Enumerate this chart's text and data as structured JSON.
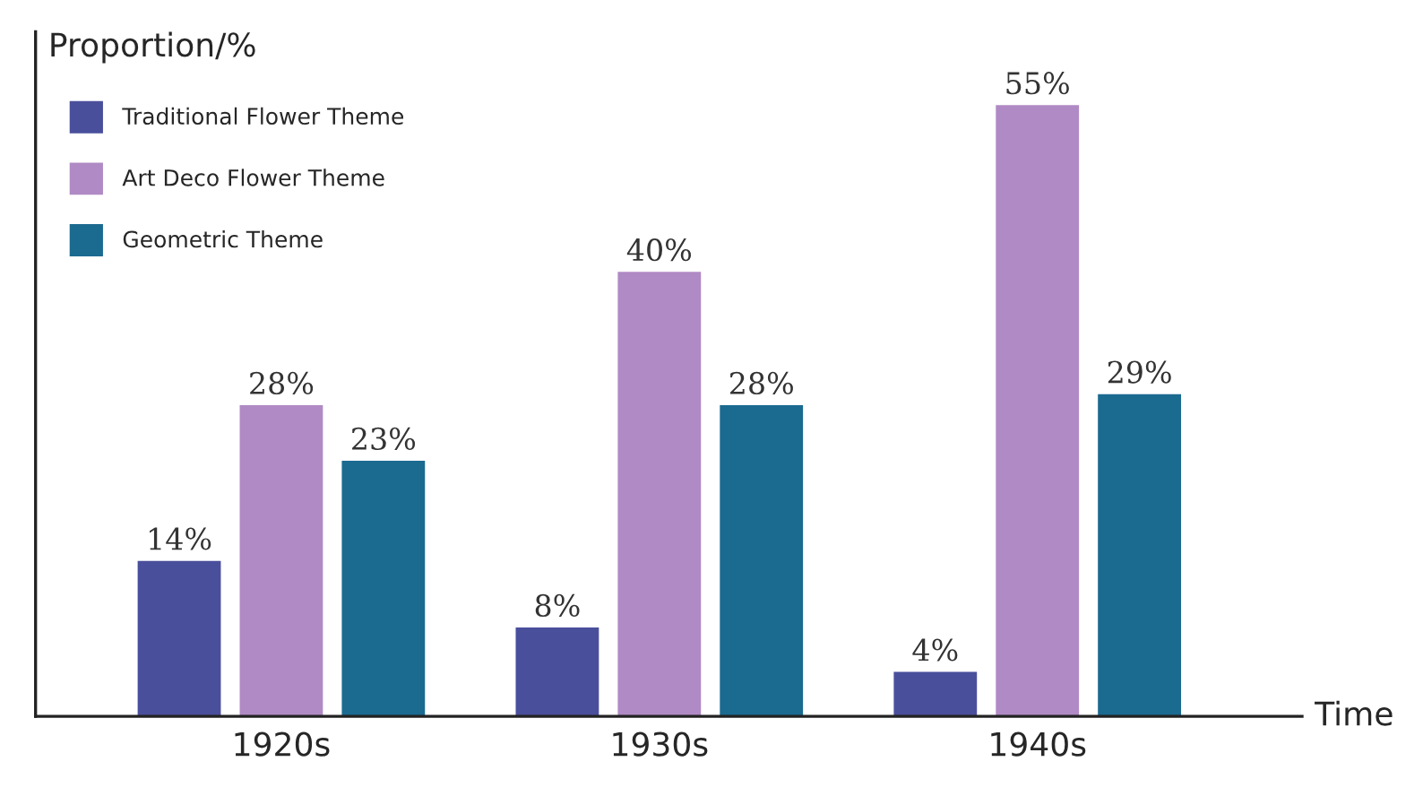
{
  "chart_data": {
    "type": "bar",
    "xlabel": "Time",
    "ylabel": "Proportion/%",
    "categories": [
      "1920s",
      "1930s",
      "1940s"
    ],
    "series": [
      {
        "name": "Traditional Flower Theme",
        "color": "#4a4f9c",
        "values": [
          14,
          8,
          4
        ],
        "value_labels": [
          "14%",
          "8%",
          "4%"
        ]
      },
      {
        "name": "Art Deco Flower Theme",
        "color": "#b08ac4",
        "values": [
          28,
          40,
          55
        ],
        "value_labels": [
          "28%",
          "40%",
          "55%"
        ]
      },
      {
        "name": "Geometric Theme",
        "color": "#1b6a90",
        "values": [
          23,
          28,
          29
        ],
        "value_labels": [
          "23%",
          "28%",
          "29%"
        ]
      }
    ],
    "legend": "top left",
    "grid": false,
    "tick_labels": "x"
  }
}
